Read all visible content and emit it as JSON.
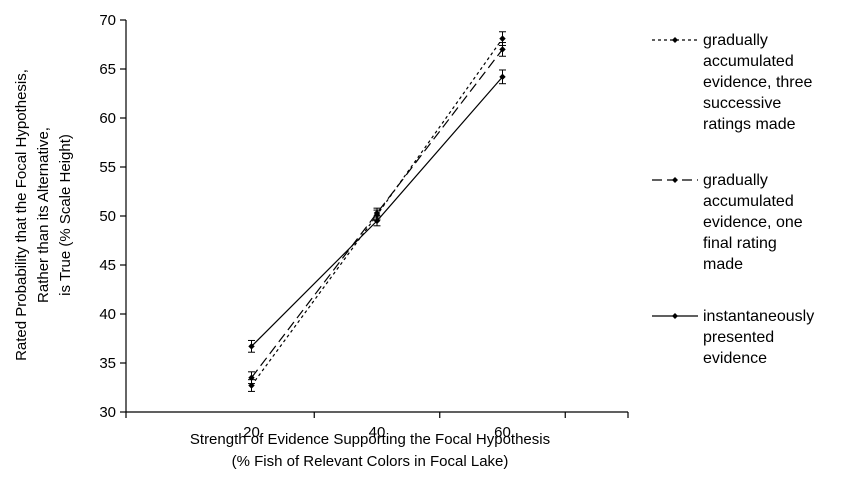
{
  "chart_data": {
    "type": "line",
    "title": "",
    "xlabel_lines": [
      "Strength of Evidence Supporting the Focal Hypothesis",
      "(% Fish of Relevant Colors in Focal Lake)"
    ],
    "ylabel_lines": [
      "Rated Probability that the Focal Hypothesis,",
      "Rather than its Alternative,",
      "is True (% Scale Height)"
    ],
    "x": [
      20,
      40,
      60
    ],
    "x_tick_labels": [
      "20",
      "40",
      "60"
    ],
    "xlim": [
      0,
      80
    ],
    "ylim": [
      30,
      70
    ],
    "y_ticks": [
      30,
      35,
      40,
      45,
      50,
      55,
      60,
      65,
      70
    ],
    "y_tick_labels": [
      "30",
      "35",
      "40",
      "45",
      "50",
      "55",
      "60",
      "65",
      "70"
    ],
    "grid": false,
    "legend_position": "right",
    "series": [
      {
        "name_lines": [
          "gradually",
          "accumulated",
          "evidence, three",
          "successive",
          "ratings made"
        ],
        "values": [
          32.7,
          50.1,
          68.1
        ],
        "errors": [
          0.6,
          0.5,
          0.7
        ],
        "dash": "3,3",
        "color": "#000000"
      },
      {
        "name_lines": [
          "gradually",
          "accumulated",
          "evidence, one",
          "final rating",
          "made"
        ],
        "values": [
          33.5,
          50.3,
          67.0
        ],
        "errors": [
          0.6,
          0.5,
          0.7
        ],
        "dash": "10,5",
        "color": "#000000"
      },
      {
        "name_lines": [
          "instantaneously",
          "presented",
          "evidence"
        ],
        "values": [
          36.7,
          49.5,
          64.2
        ],
        "errors": [
          0.6,
          0.5,
          0.7
        ],
        "dash": "",
        "color": "#000000"
      }
    ]
  }
}
